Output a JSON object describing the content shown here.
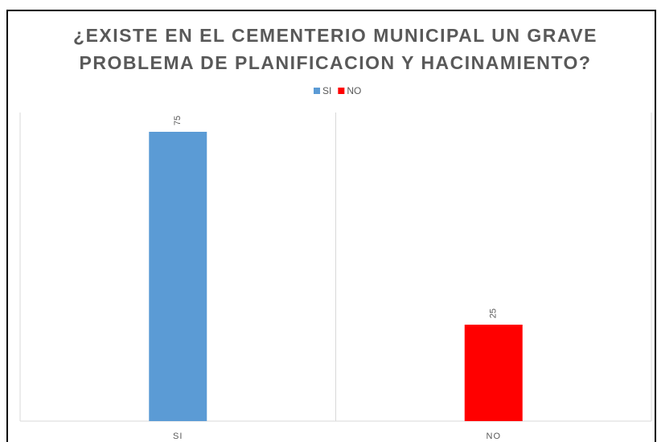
{
  "chart_data": {
    "type": "bar",
    "title": [
      "¿EXISTE EN EL CEMENTERIO MUNICIPAL UN GRAVE",
      "PROBLEMA DE PLANIFICACION Y HACINAMIENTO?"
    ],
    "categories": [
      "SI",
      "NO"
    ],
    "values": [
      75,
      25
    ],
    "colors": [
      "#5b9bd5",
      "#ff0000"
    ],
    "ylim": [
      0,
      80
    ],
    "legend": "top"
  }
}
